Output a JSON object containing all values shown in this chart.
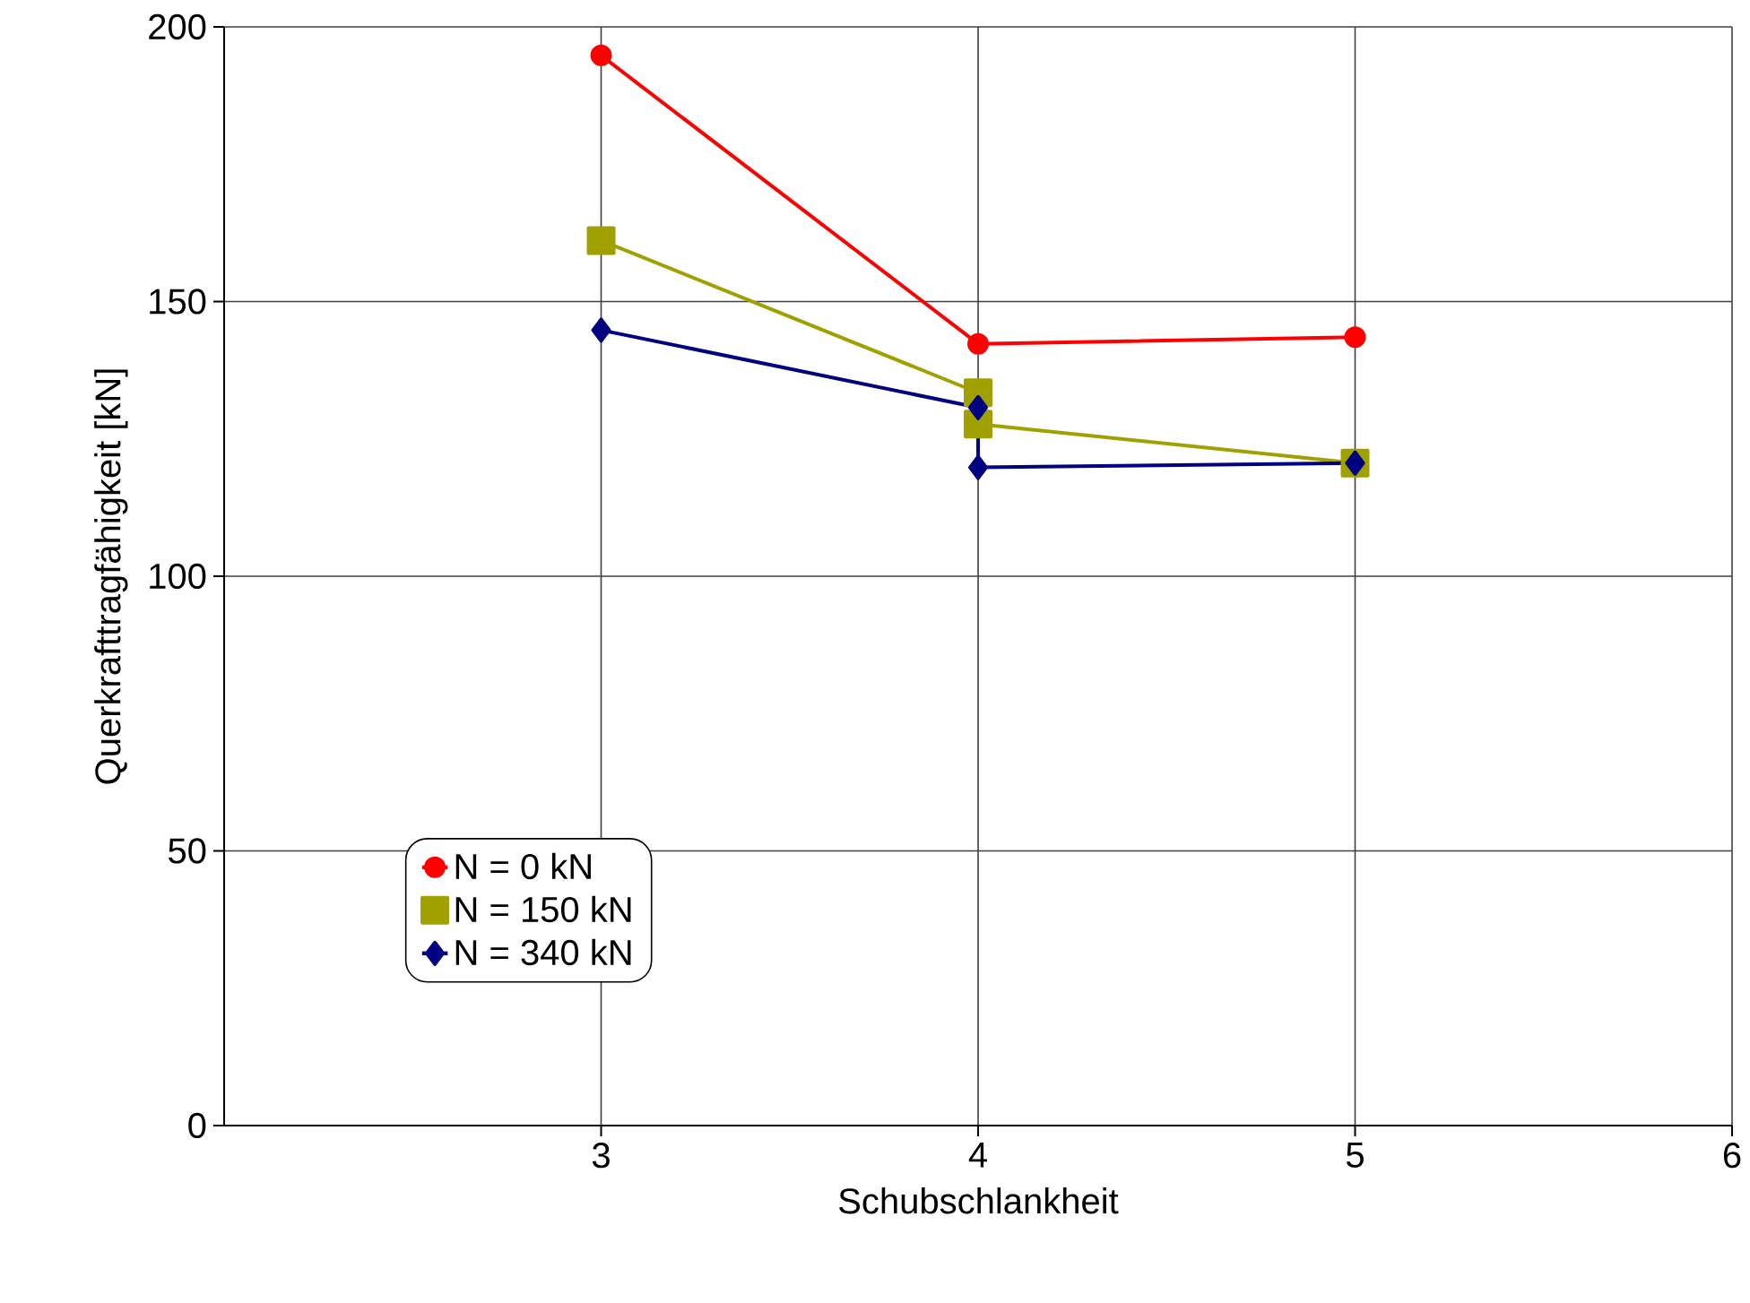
{
  "chart_data": {
    "type": "line",
    "xlabel": "Schubschlankheit",
    "ylabel": "Querkrafttragfähigkeit [kN]",
    "xlim": [
      2,
      6
    ],
    "xticks": [
      3,
      4,
      5,
      6
    ],
    "ylim": [
      0,
      200
    ],
    "yticks": [
      0,
      50,
      100,
      150,
      200
    ],
    "grid": true,
    "legend": "bottom left",
    "line_style": "solid",
    "series": [
      {
        "name": "N = 0 kN",
        "color": "#ff0000",
        "marker": "circle",
        "x": [
          3,
          4,
          5
        ],
        "values": [
          194.8,
          142.3,
          143.5
        ]
      },
      {
        "name": "N = 150 kN",
        "color": "#a0a000",
        "marker": "square",
        "x": [
          3,
          4,
          4,
          5
        ],
        "values": [
          161.1,
          133.4,
          127.7,
          120.6
        ]
      },
      {
        "name": "N = 340 kN",
        "color": "#000080",
        "marker": "diamond",
        "x": [
          3,
          4,
          4,
          5
        ],
        "values": [
          144.8,
          130.7,
          119.8,
          120.6
        ]
      }
    ]
  }
}
